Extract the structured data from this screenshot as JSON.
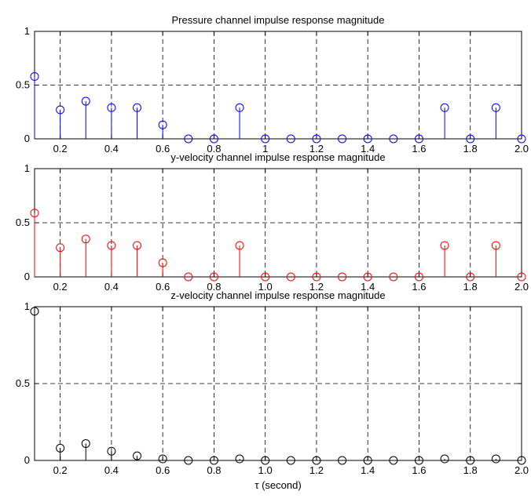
{
  "chart_data": [
    {
      "type": "stem",
      "title": "Pressure channel impulse response magnitude",
      "color": "#0000ff",
      "x": [
        0.1,
        0.2,
        0.3,
        0.4,
        0.5,
        0.6,
        0.7,
        0.8,
        0.9,
        1.0,
        1.1,
        1.2,
        1.3,
        1.4,
        1.5,
        1.6,
        1.7,
        1.8,
        1.9,
        2.0
      ],
      "values": [
        0.58,
        0.27,
        0.35,
        0.29,
        0.29,
        0.13,
        0,
        0,
        0.29,
        0,
        0,
        0,
        0,
        0,
        0,
        0,
        0.29,
        0,
        0.29,
        0
      ],
      "xlim": [
        0.1,
        2.0
      ],
      "ylim": [
        0,
        1
      ],
      "xticks": [
        0.2,
        0.4,
        0.6,
        0.8,
        1.0,
        1.2,
        1.4,
        1.6,
        1.8,
        2.0
      ],
      "xticklabels": [
        "0.2",
        "0.4",
        "0.6",
        "0.8",
        "1",
        "1.2",
        "1.4",
        "1.6",
        "1.8",
        "2.0"
      ],
      "yticks": [
        0,
        0.5,
        1
      ],
      "yticklabels": [
        "0",
        "0.5",
        "1"
      ],
      "grid": true,
      "xlabel": ""
    },
    {
      "type": "stem",
      "title": "y-velocity channel impulse response magnitude",
      "color": "#ff0000",
      "x": [
        0.1,
        0.2,
        0.3,
        0.4,
        0.5,
        0.6,
        0.7,
        0.8,
        0.9,
        1.0,
        1.1,
        1.2,
        1.3,
        1.4,
        1.5,
        1.6,
        1.7,
        1.8,
        1.9,
        2.0
      ],
      "values": [
        0.59,
        0.27,
        0.35,
        0.29,
        0.29,
        0.13,
        0,
        0,
        0.29,
        0,
        0,
        0,
        0,
        0,
        0,
        0,
        0.29,
        0,
        0.29,
        0
      ],
      "xlim": [
        0.1,
        2.0
      ],
      "ylim": [
        0,
        1
      ],
      "xticks": [
        0.2,
        0.4,
        0.6,
        0.8,
        1.0,
        1.2,
        1.4,
        1.6,
        1.8,
        2.0
      ],
      "xticklabels": [
        "0.2",
        "0.4",
        "0.6",
        "0.8",
        "1.0",
        "1.2",
        "1.4",
        "1.6",
        "1.8",
        "2.0"
      ],
      "yticks": [
        0,
        0.5,
        1
      ],
      "yticklabels": [
        "0",
        "0.5",
        "1"
      ],
      "grid": true,
      "xlabel": ""
    },
    {
      "type": "stem",
      "title": "z-velocity channel impulse response magnitude",
      "color": "#000000",
      "x": [
        0.1,
        0.2,
        0.3,
        0.4,
        0.5,
        0.6,
        0.7,
        0.8,
        0.9,
        1.0,
        1.1,
        1.2,
        1.3,
        1.4,
        1.5,
        1.6,
        1.7,
        1.8,
        1.9,
        2.0
      ],
      "values": [
        0.97,
        0.08,
        0.11,
        0.06,
        0.03,
        0.01,
        0,
        0,
        0.01,
        0,
        0,
        0,
        0,
        0,
        0,
        0,
        0.01,
        0,
        0.01,
        0
      ],
      "xlim": [
        0.1,
        2.0
      ],
      "ylim": [
        0,
        1
      ],
      "xticks": [
        0.2,
        0.4,
        0.6,
        0.8,
        1.0,
        1.2,
        1.4,
        1.6,
        1.8,
        2.0
      ],
      "xticklabels": [
        "0.2",
        "0.4",
        "0.6",
        "0.8",
        "1.0",
        "1.2",
        "1.4",
        "1.6",
        "1.8",
        "2.0"
      ],
      "yticks": [
        0,
        0.5,
        1
      ],
      "yticklabels": [
        "0",
        "0.5",
        "1"
      ],
      "grid": true,
      "xlabel": "τ (second)"
    }
  ]
}
